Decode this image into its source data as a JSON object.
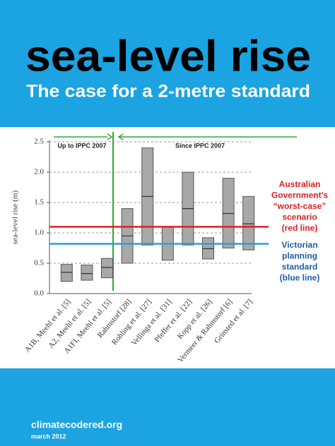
{
  "header": {
    "title": "sea-level rise",
    "subtitle": "The case for a 2-metre standard"
  },
  "chart_data": {
    "type": "box",
    "y_label": "sea-level rise (m)",
    "categories": [
      "A1B, Meehl et al. [5]",
      "A2, Meehl et al. [5]",
      "A1FI, Meehl et al. [5]",
      "Rahmstorf [28]",
      "Rohling et al. [27]",
      "Vellinga et al. [31]",
      "Pfeffer et al. [22]",
      "Kopp et al. [26]",
      "Vermeer & Rahmstorf [6]",
      "Grinsted et al. [7]"
    ],
    "low": [
      0.2,
      0.22,
      0.26,
      0.5,
      0.8,
      0.55,
      0.8,
      0.57,
      0.75,
      0.72
    ],
    "mid": [
      0.35,
      0.33,
      0.43,
      0.95,
      1.6,
      null,
      1.4,
      0.74,
      1.32,
      1.15
    ],
    "high": [
      0.48,
      0.47,
      0.58,
      1.4,
      2.4,
      1.1,
      2.0,
      0.92,
      1.9,
      1.6
    ],
    "color": "#a8a8a8",
    "ylim": [
      0,
      2.5
    ],
    "yticks": [
      {
        "value": 0,
        "label": "0.0"
      },
      {
        "value": 0.5,
        "label": "0.5"
      },
      {
        "value": 1,
        "label": "1.0"
      },
      {
        "value": 1.5,
        "label": "1.5"
      },
      {
        "value": 2,
        "label": "2.0"
      },
      {
        "value": 2.5,
        "label": "2.5"
      }
    ],
    "grid": true,
    "periods": [
      "Up to IPPC 2007",
      "Since IPPC 2007"
    ],
    "reference_lines": [
      {
        "value": 1.1,
        "color": "#e02020",
        "label": [
          "Australian",
          "Government's",
          "“worst-case”",
          "scenario",
          "(red line)"
        ]
      },
      {
        "value": 0.82,
        "color": "#2a9fd8",
        "label": [
          "Victorian",
          "planning",
          "standard",
          "(blue line)"
        ]
      }
    ]
  },
  "footer": {
    "site": "climatecodered.org",
    "date": "march 2012"
  }
}
